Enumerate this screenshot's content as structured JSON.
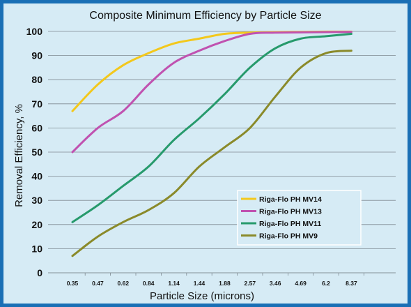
{
  "chart_data": {
    "type": "line",
    "title": "Composite Minimum Efficiency by Particle Size",
    "xlabel": "Particle Size (microns)",
    "ylabel": "Removal Efficiency, %",
    "categories": [
      "0.35",
      "0.47",
      "0.62",
      "0.84",
      "1.14",
      "1.44",
      "1.88",
      "2.57",
      "3.46",
      "4.69",
      "6.2",
      "8.37"
    ],
    "ylim": [
      0,
      100
    ],
    "yticks": [
      0,
      10,
      20,
      30,
      40,
      50,
      60,
      70,
      80,
      90,
      100
    ],
    "grid": "horizontal",
    "legend_position": "bottom-right",
    "series": [
      {
        "name": "Riga-Flo PH MV14",
        "color": "#f3c81c",
        "values": [
          67,
          78,
          86,
          91,
          95,
          97,
          99,
          99.5,
          99.7,
          99.8,
          99.9,
          99.9
        ]
      },
      {
        "name": "Riga-Flo PH MV13",
        "color": "#c052b0",
        "values": [
          50,
          60,
          67,
          78,
          87,
          92,
          96,
          99,
          99.5,
          99.6,
          99.7,
          99.8
        ]
      },
      {
        "name": "Riga-Flo PH MV11",
        "color": "#279a6c",
        "values": [
          21,
          28,
          36,
          44,
          55,
          64,
          74,
          85,
          93,
          97,
          98,
          99
        ]
      },
      {
        "name": "Riga-Flo PH MV9",
        "color": "#8a8a2a",
        "values": [
          7,
          15,
          21,
          26,
          33,
          44,
          52,
          60,
          73,
          85,
          91,
          92
        ]
      }
    ]
  }
}
